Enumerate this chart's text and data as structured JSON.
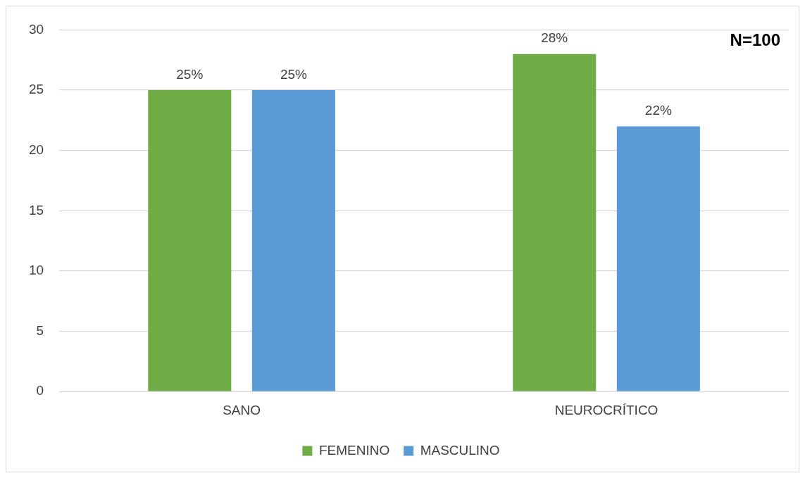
{
  "chart_data": {
    "type": "bar",
    "categories": [
      "SANO",
      "NEUROCRÍTICO"
    ],
    "series": [
      {
        "name": "FEMENINO",
        "color": "#70ad47",
        "values": [
          25,
          28
        ],
        "value_labels": [
          "25%",
          "28%"
        ]
      },
      {
        "name": "MASCULINO",
        "color": "#5b9bd5",
        "values": [
          25,
          22
        ],
        "value_labels": [
          "25%",
          "22%"
        ]
      }
    ],
    "ylim": [
      0,
      30
    ],
    "yticks": [
      0,
      5,
      10,
      15,
      20,
      25,
      30
    ],
    "grid": "y",
    "legend": "bottom",
    "annotations": [
      "N=100"
    ]
  }
}
